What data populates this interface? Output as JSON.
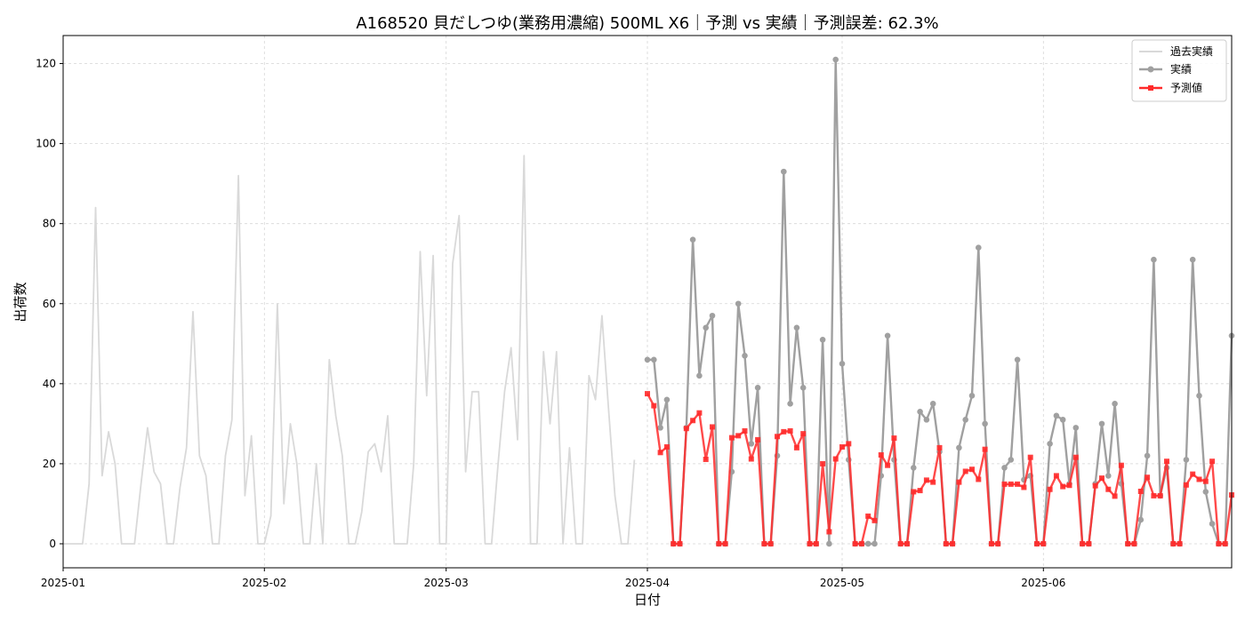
{
  "chart_data": {
    "type": "line",
    "title": "A168520 貝だしつゆ(業務用濃縮) 500ML X6｜予測 vs 実績｜予測誤差: 62.3%",
    "xlabel": "日付",
    "ylabel": "出荷数",
    "ylim": [
      -6,
      127
    ],
    "yticks": [
      0,
      20,
      40,
      60,
      80,
      100,
      120
    ],
    "xlim": [
      "2025-01-01",
      "2025-06-30"
    ],
    "xticks": [
      {
        "date": "2025-01-01",
        "label": "2025-01"
      },
      {
        "date": "2025-02-01",
        "label": "2025-02"
      },
      {
        "date": "2025-03-01",
        "label": "2025-03"
      },
      {
        "date": "2025-04-01",
        "label": "2025-04"
      },
      {
        "date": "2025-05-01",
        "label": "2025-05"
      },
      {
        "date": "2025-06-01",
        "label": "2025-06"
      }
    ],
    "grid": true,
    "legend_position": "top-right",
    "series": [
      {
        "name": "過去実績",
        "color": "#d9d9d9",
        "start": "2025-01-01",
        "values": [
          0,
          0,
          0,
          0,
          15,
          84,
          17,
          28,
          20,
          0,
          0,
          0,
          15,
          29,
          18,
          15,
          0,
          0,
          14,
          24,
          58,
          22,
          17,
          0,
          0,
          22,
          31,
          92,
          12,
          27,
          0,
          0,
          7,
          60,
          10,
          30,
          20,
          0,
          0,
          20,
          0,
          46,
          32,
          22,
          0,
          0,
          8,
          23,
          25,
          18,
          32,
          0,
          0,
          0,
          20,
          73,
          37,
          72,
          0,
          0,
          70,
          82,
          18,
          38,
          38,
          0,
          0,
          20,
          38,
          49,
          26,
          97,
          0,
          0,
          48,
          30,
          48,
          0,
          24,
          0,
          0,
          42,
          36,
          57,
          34,
          12,
          0,
          0,
          21
        ]
      },
      {
        "name": "実績",
        "color": "#a0a0a0",
        "marker": "circle",
        "start": "2025-04-01",
        "values": [
          46,
          46,
          29,
          36,
          0,
          0,
          29,
          76,
          42,
          54,
          57,
          0,
          0,
          18,
          60,
          47,
          25,
          39,
          0,
          0,
          22,
          93,
          35,
          54,
          39,
          0,
          0,
          51,
          0,
          121,
          45,
          21,
          0,
          0,
          0,
          0,
          17,
          52,
          21,
          0,
          0,
          19,
          33,
          31,
          35,
          23,
          0,
          0,
          24,
          31,
          37,
          74,
          30,
          0,
          0,
          19,
          21,
          46,
          16,
          17,
          0,
          0,
          25,
          32,
          31,
          15,
          29,
          0,
          0,
          15,
          30,
          17,
          35,
          15,
          0,
          0,
          6,
          22,
          71,
          12,
          19,
          0,
          0,
          21,
          71,
          37,
          13,
          5,
          0,
          0,
          52
        ]
      },
      {
        "name": "予測値",
        "color": "#ff2a2a",
        "marker": "square",
        "start": "2025-04-01",
        "values": [
          37.5,
          34.5,
          22.8,
          24.2,
          0,
          0,
          28.8,
          30.8,
          32.7,
          21.1,
          29.2,
          0,
          0,
          26.5,
          27,
          28.2,
          21.2,
          26,
          0,
          0,
          26.8,
          28,
          28.2,
          24,
          27.5,
          0,
          0,
          20,
          3,
          21.2,
          24.2,
          25,
          0,
          0,
          6.9,
          5.8,
          22.2,
          19.6,
          26.4,
          0,
          0,
          13,
          13.3,
          15.9,
          15.4,
          24,
          0,
          0,
          15.4,
          18.1,
          18.6,
          16.1,
          23.6,
          0,
          0,
          14.9,
          14.9,
          14.9,
          14.1,
          21.6,
          0,
          0,
          13.6,
          17,
          14.3,
          14.6,
          21.6,
          0,
          0,
          14.5,
          16.4,
          13.6,
          11.9,
          19.6,
          0,
          0,
          13.1,
          16.6,
          12,
          12,
          20.6,
          0,
          0,
          14.7,
          17.4,
          16.1,
          15.6,
          20.6,
          0,
          0,
          12.2
        ]
      }
    ]
  }
}
